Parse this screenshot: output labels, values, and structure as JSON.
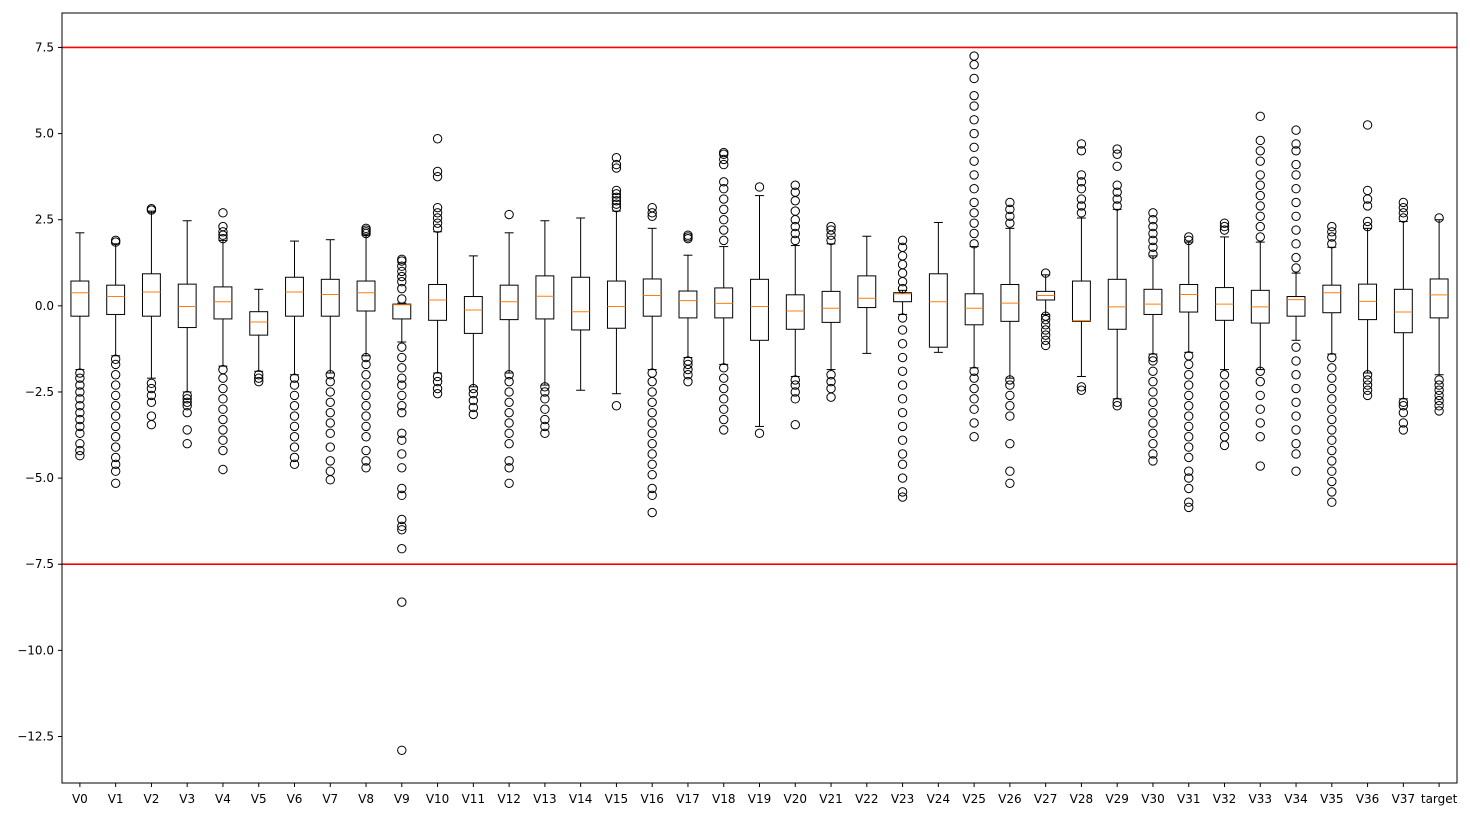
{
  "chart_data": {
    "type": "box",
    "title": "",
    "xlabel": "",
    "ylabel": "",
    "ylim": [
      -13.85,
      8.5
    ],
    "yticks": [
      7.5,
      5.0,
      2.5,
      0.0,
      -2.5,
      -5.0,
      -7.5,
      -10.0,
      -12.5
    ],
    "ytick_labels": [
      "7.5",
      "5.0",
      "2.5",
      "0.0",
      "−2.5",
      "−5.0",
      "−7.5",
      "−10.0",
      "−12.5"
    ],
    "reference_lines": [
      7.5,
      -7.5
    ],
    "categories": [
      "V0",
      "V1",
      "V2",
      "V3",
      "V4",
      "V5",
      "V6",
      "V7",
      "V8",
      "V9",
      "V10",
      "V11",
      "V12",
      "V13",
      "V14",
      "V15",
      "V16",
      "V17",
      "V18",
      "V19",
      "V20",
      "V21",
      "V22",
      "V23",
      "V24",
      "V25",
      "V26",
      "V27",
      "V28",
      "V29",
      "V30",
      "V31",
      "V32",
      "V33",
      "V34",
      "V35",
      "V36",
      "V37",
      "target"
    ],
    "boxes": [
      {
        "whislo": -1.85,
        "q1": -0.3,
        "med": 0.38,
        "q3": 0.72,
        "whishi": 2.12,
        "fliers_low": [
          -4.35,
          -4.2,
          -4.0,
          -3.7,
          -3.5,
          -3.3,
          -3.1,
          -2.9,
          -2.7,
          -2.5,
          -2.3,
          -2.1,
          -1.95
        ],
        "fliers_high": []
      },
      {
        "whislo": -1.45,
        "q1": -0.25,
        "med": 0.27,
        "q3": 0.6,
        "whishi": 1.8,
        "fliers_low": [
          -5.15,
          -4.8,
          -4.6,
          -4.4,
          -4.1,
          -3.8,
          -3.5,
          -3.2,
          -2.9,
          -2.6,
          -2.3,
          -2.0,
          -1.7,
          -1.55
        ],
        "fliers_high": [
          1.85,
          1.9
        ]
      },
      {
        "whislo": -2.1,
        "q1": -0.3,
        "med": 0.4,
        "q3": 0.93,
        "whishi": 2.75,
        "fliers_low": [
          -3.45,
          -3.2,
          -2.8,
          -2.6,
          -2.4,
          -2.25
        ],
        "fliers_high": [
          2.78,
          2.82
        ]
      },
      {
        "whislo": -2.5,
        "q1": -0.63,
        "med": -0.02,
        "q3": 0.63,
        "whishi": 2.47,
        "fliers_low": [
          -4.0,
          -3.6,
          -3.1,
          -2.9,
          -2.8,
          -2.7,
          -2.6
        ],
        "fliers_high": []
      },
      {
        "whislo": -1.75,
        "q1": -0.38,
        "med": 0.12,
        "q3": 0.55,
        "whishi": 1.9,
        "fliers_low": [
          -4.75,
          -4.2,
          -3.9,
          -3.6,
          -3.3,
          -3.0,
          -2.7,
          -2.4,
          -2.1,
          -1.85
        ],
        "fliers_high": [
          1.95,
          2.05,
          2.15,
          2.3,
          2.7
        ]
      },
      {
        "whislo": -1.9,
        "q1": -0.85,
        "med": -0.47,
        "q3": -0.17,
        "whishi": 0.48,
        "fliers_low": [
          -2.2,
          -2.1,
          -2.0
        ],
        "fliers_high": []
      },
      {
        "whislo": -2.0,
        "q1": -0.3,
        "med": 0.4,
        "q3": 0.83,
        "whishi": 1.88,
        "fliers_low": [
          -4.6,
          -4.4,
          -4.1,
          -3.8,
          -3.5,
          -3.2,
          -2.9,
          -2.6,
          -2.3,
          -2.1
        ],
        "fliers_high": []
      },
      {
        "whislo": -1.95,
        "q1": -0.3,
        "med": 0.33,
        "q3": 0.77,
        "whishi": 1.92,
        "fliers_low": [
          -5.05,
          -4.8,
          -4.5,
          -4.1,
          -3.7,
          -3.4,
          -3.1,
          -2.8,
          -2.5,
          -2.2,
          -2.0
        ],
        "fliers_high": []
      },
      {
        "whislo": -1.45,
        "q1": -0.15,
        "med": 0.38,
        "q3": 0.72,
        "whishi": 2.05,
        "fliers_low": [
          -4.7,
          -4.5,
          -4.2,
          -3.8,
          -3.5,
          -3.2,
          -2.9,
          -2.6,
          -2.3,
          -2.0,
          -1.7,
          -1.5
        ],
        "fliers_high": [
          2.1,
          2.15,
          2.2,
          2.25
        ]
      },
      {
        "whislo": -1.05,
        "q1": -0.38,
        "med": 0.03,
        "q3": 0.05,
        "whishi": 0.08,
        "fliers_low": [
          -12.9,
          -8.6,
          -7.05,
          -6.5,
          -6.4,
          -6.2,
          -5.5,
          -5.3,
          -4.7,
          -4.3,
          -3.9,
          -3.7,
          -3.1,
          -2.9,
          -2.6,
          -2.3,
          -2.1,
          -1.8,
          -1.5,
          -1.2
        ],
        "fliers_high": [
          0.2,
          0.5,
          0.7,
          0.85,
          1.0,
          1.15,
          1.3,
          1.35
        ]
      },
      {
        "whislo": -1.95,
        "q1": -0.42,
        "med": 0.17,
        "q3": 0.62,
        "whishi": 2.15,
        "fliers_low": [
          -2.55,
          -2.4,
          -2.2,
          -2.05
        ],
        "fliers_high": [
          2.25,
          2.4,
          2.55,
          2.7,
          2.85,
          3.75,
          3.9,
          4.85
        ]
      },
      {
        "whislo": -2.35,
        "q1": -0.8,
        "med": -0.12,
        "q3": 0.27,
        "whishi": 1.45,
        "fliers_low": [
          -3.15,
          -2.95,
          -2.75,
          -2.55,
          -2.4
        ],
        "fliers_high": []
      },
      {
        "whislo": -1.95,
        "q1": -0.4,
        "med": 0.12,
        "q3": 0.6,
        "whishi": 2.12,
        "fliers_low": [
          -5.15,
          -4.7,
          -4.5,
          -4.0,
          -3.7,
          -3.4,
          -3.1,
          -2.8,
          -2.5,
          -2.2,
          -2.0
        ],
        "fliers_high": [
          2.65
        ]
      },
      {
        "whislo": -2.3,
        "q1": -0.38,
        "med": 0.28,
        "q3": 0.87,
        "whishi": 2.47,
        "fliers_low": [
          -3.7,
          -3.5,
          -3.3,
          -3.0,
          -2.7,
          -2.5,
          -2.35
        ],
        "fliers_high": []
      },
      {
        "whislo": -2.45,
        "q1": -0.7,
        "med": -0.17,
        "q3": 0.83,
        "whishi": 2.55,
        "fliers_low": [],
        "fliers_high": []
      },
      {
        "whislo": -2.55,
        "q1": -0.65,
        "med": -0.02,
        "q3": 0.72,
        "whishi": 2.75,
        "fliers_low": [
          -2.9
        ],
        "fliers_high": [
          2.85,
          2.95,
          3.05,
          3.15,
          3.25,
          3.35,
          4.0,
          4.1,
          4.3
        ]
      },
      {
        "whislo": -1.85,
        "q1": -0.3,
        "med": 0.3,
        "q3": 0.78,
        "whishi": 2.25,
        "fliers_low": [
          -6.0,
          -5.5,
          -5.3,
          -4.9,
          -4.6,
          -4.3,
          -4.0,
          -3.7,
          -3.4,
          -3.1,
          -2.8,
          -2.5,
          -2.2,
          -1.95
        ],
        "fliers_high": [
          2.6,
          2.7,
          2.85
        ]
      },
      {
        "whislo": -1.5,
        "q1": -0.35,
        "med": 0.15,
        "q3": 0.43,
        "whishi": 1.47,
        "fliers_low": [
          -2.2,
          -2.0,
          -1.85,
          -1.7,
          -1.6
        ],
        "fliers_high": [
          1.95,
          2.0,
          2.05
        ]
      },
      {
        "whislo": -1.7,
        "q1": -0.35,
        "med": 0.07,
        "q3": 0.52,
        "whishi": 1.72,
        "fliers_low": [
          -3.6,
          -3.3,
          -3.0,
          -2.7,
          -2.4,
          -2.1,
          -1.8
        ],
        "fliers_high": [
          1.9,
          2.2,
          2.5,
          2.8,
          3.1,
          3.4,
          3.6,
          4.1,
          4.25,
          4.4,
          4.45
        ]
      },
      {
        "whislo": -3.5,
        "q1": -1.0,
        "med": -0.02,
        "q3": 0.77,
        "whishi": 3.2,
        "fliers_low": [
          -3.7
        ],
        "fliers_high": [
          3.45
        ]
      },
      {
        "whislo": -2.05,
        "q1": -0.68,
        "med": -0.15,
        "q3": 0.32,
        "whishi": 1.75,
        "fliers_low": [
          -3.45,
          -2.7,
          -2.5,
          -2.3,
          -2.15
        ],
        "fliers_high": [
          1.9,
          2.1,
          2.3,
          2.5,
          2.75,
          3.05,
          3.3,
          3.5
        ]
      },
      {
        "whislo": -1.85,
        "q1": -0.48,
        "med": -0.07,
        "q3": 0.42,
        "whishi": 1.8,
        "fliers_low": [
          -2.65,
          -2.4,
          -2.2,
          -2.0
        ],
        "fliers_high": [
          1.9,
          2.05,
          2.2,
          2.3
        ]
      },
      {
        "whislo": -1.38,
        "q1": -0.05,
        "med": 0.22,
        "q3": 0.87,
        "whishi": 2.02,
        "fliers_low": [],
        "fliers_high": []
      },
      {
        "whislo": -0.25,
        "q1": 0.12,
        "med": 0.35,
        "q3": 0.38,
        "whishi": 0.45,
        "fliers_low": [
          -5.55,
          -5.4,
          -5.0,
          -4.6,
          -4.3,
          -3.9,
          -3.5,
          -3.1,
          -2.7,
          -2.3,
          -1.9,
          -1.5,
          -1.1,
          -0.7,
          -0.35
        ],
        "fliers_high": [
          0.5,
          0.7,
          0.95,
          1.2,
          1.45,
          1.7,
          1.9
        ]
      },
      {
        "whislo": -1.35,
        "q1": -1.2,
        "med": 0.12,
        "q3": 0.93,
        "whishi": 2.42,
        "fliers_low": [],
        "fliers_high": []
      },
      {
        "whislo": -1.8,
        "q1": -0.55,
        "med": -0.07,
        "q3": 0.35,
        "whishi": 1.72,
        "fliers_low": [
          -3.8,
          -3.4,
          -3.0,
          -2.7,
          -2.4,
          -2.1,
          -1.9
        ],
        "fliers_high": [
          1.8,
          2.1,
          2.4,
          2.7,
          3.0,
          3.4,
          3.8,
          4.2,
          4.6,
          5.0,
          5.4,
          5.8,
          6.1,
          6.6,
          7.0,
          7.25
        ]
      },
      {
        "whislo": -2.1,
        "q1": -0.45,
        "med": 0.08,
        "q3": 0.62,
        "whishi": 2.25,
        "fliers_low": [
          -5.15,
          -4.8,
          -4.0,
          -3.2,
          -2.9,
          -2.6,
          -2.3,
          -2.15
        ],
        "fliers_high": [
          2.4,
          2.6,
          2.8,
          3.0
        ]
      },
      {
        "whislo": -0.25,
        "q1": 0.17,
        "med": 0.3,
        "q3": 0.42,
        "whishi": 0.9,
        "fliers_low": [
          -1.15,
          -1.0,
          -0.85,
          -0.7,
          -0.55,
          -0.4,
          -0.3
        ],
        "fliers_high": [
          0.95
        ]
      },
      {
        "whislo": -2.05,
        "q1": -0.45,
        "med": -0.43,
        "q3": 0.72,
        "whishi": 2.55,
        "fliers_low": [
          -2.45,
          -2.35
        ],
        "fliers_high": [
          2.7,
          2.9,
          3.1,
          3.4,
          3.6,
          3.8,
          4.5,
          4.7
        ]
      },
      {
        "whislo": -2.7,
        "q1": -0.68,
        "med": -0.03,
        "q3": 0.77,
        "whishi": 2.8,
        "fliers_low": [
          -2.9,
          -2.8
        ],
        "fliers_high": [
          2.9,
          3.1,
          3.3,
          3.5,
          4.05,
          4.4,
          4.55
        ]
      },
      {
        "whislo": -1.4,
        "q1": -0.25,
        "med": 0.05,
        "q3": 0.48,
        "whishi": 1.45,
        "fliers_low": [
          -4.5,
          -4.3,
          -4.0,
          -3.7,
          -3.4,
          -3.1,
          -2.8,
          -2.5,
          -2.2,
          -1.9,
          -1.6,
          -1.5
        ],
        "fliers_high": [
          1.5,
          1.7,
          1.9,
          2.1,
          2.3,
          2.5,
          2.7
        ]
      },
      {
        "whislo": -1.35,
        "q1": -0.18,
        "med": 0.33,
        "q3": 0.62,
        "whishi": 1.85,
        "fliers_low": [
          -5.85,
          -5.7,
          -5.3,
          -5.0,
          -4.8,
          -4.4,
          -4.1,
          -3.8,
          -3.5,
          -3.2,
          -2.9,
          -2.6,
          -2.3,
          -2.0,
          -1.7,
          -1.45
        ],
        "fliers_high": [
          1.9,
          2.0
        ]
      },
      {
        "whislo": -1.85,
        "q1": -0.42,
        "med": 0.05,
        "q3": 0.53,
        "whishi": 2.0,
        "fliers_low": [
          -4.05,
          -3.8,
          -3.5,
          -3.2,
          -2.9,
          -2.6,
          -2.3,
          -2.0
        ],
        "fliers_high": [
          2.2,
          2.3,
          2.4
        ]
      },
      {
        "whislo": -1.85,
        "q1": -0.5,
        "med": -0.03,
        "q3": 0.45,
        "whishi": 1.85,
        "fliers_low": [
          -4.65,
          -3.8,
          -3.4,
          -3.0,
          -2.6,
          -2.2,
          -1.9
        ],
        "fliers_high": [
          2.0,
          2.3,
          2.6,
          2.9,
          3.2,
          3.5,
          3.8,
          4.2,
          4.5,
          4.8,
          5.5
        ]
      },
      {
        "whislo": -1.0,
        "q1": -0.3,
        "med": 0.18,
        "q3": 0.27,
        "whishi": 0.95,
        "fliers_low": [
          -4.8,
          -4.3,
          -4.0,
          -3.6,
          -3.2,
          -2.8,
          -2.4,
          -2.0,
          -1.6,
          -1.2
        ],
        "fliers_high": [
          1.1,
          1.4,
          1.8,
          2.2,
          2.6,
          3.0,
          3.4,
          3.8,
          4.1,
          4.5,
          4.7,
          5.1
        ]
      },
      {
        "whislo": -1.4,
        "q1": -0.2,
        "med": 0.38,
        "q3": 0.6,
        "whishi": 1.7,
        "fliers_low": [
          -5.7,
          -5.4,
          -5.1,
          -4.8,
          -4.5,
          -4.2,
          -3.9,
          -3.6,
          -3.3,
          -3.0,
          -2.7,
          -2.4,
          -2.1,
          -1.8,
          -1.5
        ],
        "fliers_high": [
          1.8,
          2.0,
          2.15,
          2.3
        ]
      },
      {
        "whislo": -1.95,
        "q1": -0.4,
        "med": 0.13,
        "q3": 0.63,
        "whishi": 2.25,
        "fliers_low": [
          -2.6,
          -2.45,
          -2.3,
          -2.15,
          -2.0
        ],
        "fliers_high": [
          2.3,
          2.45,
          2.9,
          3.1,
          3.35,
          5.25
        ]
      },
      {
        "whislo": -2.7,
        "q1": -0.78,
        "med": -0.18,
        "q3": 0.48,
        "whishi": 2.45,
        "fliers_low": [
          -3.6,
          -3.4,
          -3.1,
          -2.9,
          -2.8
        ],
        "fliers_high": [
          2.55,
          2.7,
          2.85,
          3.0
        ]
      },
      {
        "whislo": -2.0,
        "q1": -0.35,
        "med": 0.32,
        "q3": 0.78,
        "whishi": 2.5,
        "fliers_low": [
          -3.05,
          -2.9,
          -2.75,
          -2.6,
          -2.45,
          -2.3,
          -2.15
        ],
        "fliers_high": [
          2.55
        ]
      }
    ]
  }
}
